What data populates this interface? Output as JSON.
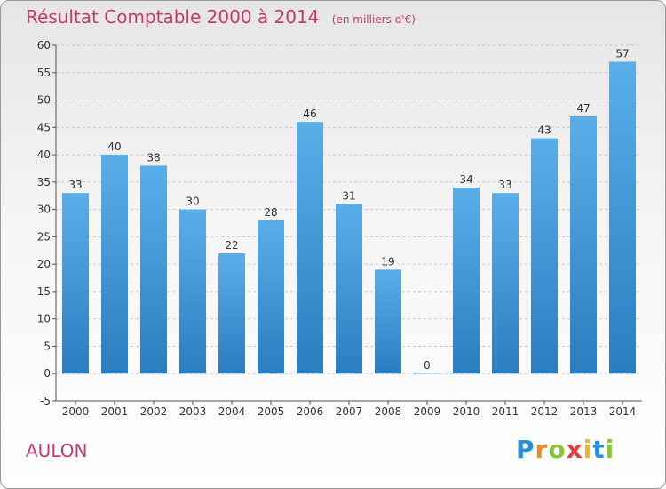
{
  "title": "Résultat Comptable 2000 à 2014",
  "unit_label": "(en milliers d'€)",
  "place_name": "AULON",
  "logo": {
    "letters": [
      "P",
      "r",
      "o",
      "x",
      "i",
      "t",
      "i"
    ],
    "colors": [
      "#2a8fd6",
      "#f08a1e",
      "#8cc43c",
      "#e63c3c",
      "#f0b41e",
      "#2a8fd6",
      "#8cc43c"
    ]
  },
  "colors": {
    "title": "#c43a6a",
    "bar_light": "#5aaee8",
    "bar_dark": "#2a7ec0"
  },
  "chart_data": {
    "type": "bar",
    "title": "Résultat Comptable 2000 à 2014",
    "subtitle": "(en milliers d'€)",
    "categories": [
      "2000",
      "2001",
      "2002",
      "2003",
      "2004",
      "2005",
      "2006",
      "2007",
      "2008",
      "2009",
      "2010",
      "2011",
      "2012",
      "2013",
      "2014"
    ],
    "values": [
      33,
      40,
      38,
      30,
      22,
      28,
      46,
      31,
      19,
      0,
      34,
      33,
      43,
      47,
      57
    ],
    "ylim": [
      -5,
      60
    ],
    "yticks": [
      -5,
      0,
      5,
      10,
      15,
      20,
      25,
      30,
      35,
      40,
      45,
      50,
      55,
      60
    ],
    "grid": true,
    "xlabel": "",
    "ylabel": ""
  }
}
